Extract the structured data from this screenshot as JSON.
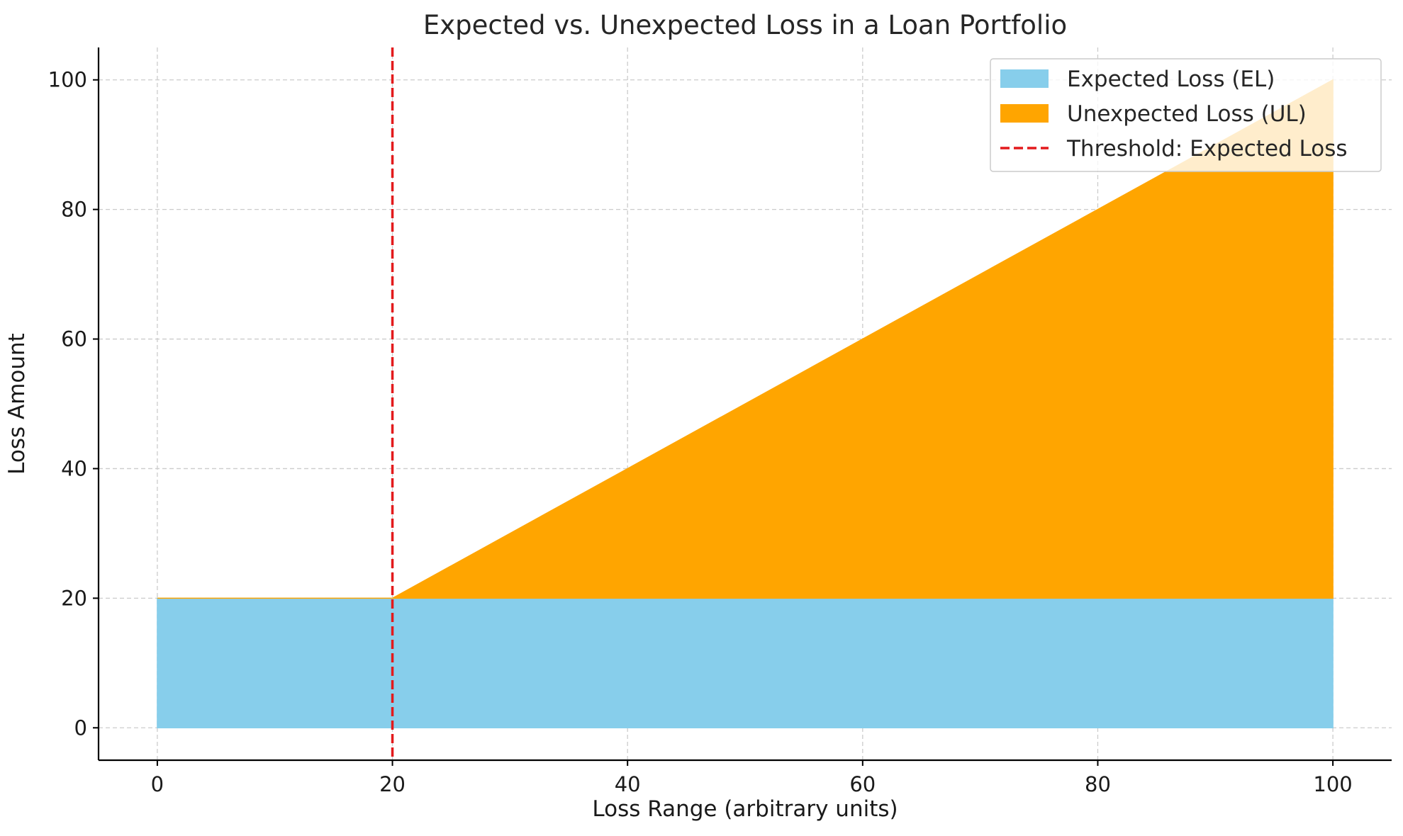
{
  "chart_data": {
    "type": "area",
    "title": "Expected vs. Unexpected Loss in a Loan Portfolio",
    "xlabel": "Loss Range (arbitrary units)",
    "ylabel": "Loss Amount",
    "xlim": [
      -5,
      105
    ],
    "ylim": [
      -5,
      105
    ],
    "x_ticks": [
      0,
      20,
      40,
      60,
      80,
      100
    ],
    "y_ticks": [
      0,
      20,
      40,
      60,
      80,
      100
    ],
    "grid": true,
    "legend_position": "top-right",
    "series": [
      {
        "name": "Expected Loss (EL)",
        "kind": "fill",
        "color": "#87CEEB",
        "x": [
          0,
          100
        ],
        "lower": [
          0,
          0
        ],
        "upper": [
          20,
          20
        ]
      },
      {
        "name": "Unexpected Loss (UL)",
        "kind": "fill",
        "color": "#FFA500",
        "x": [
          0,
          20,
          100
        ],
        "lower": [
          20,
          20,
          20
        ],
        "upper": [
          20,
          20,
          100
        ]
      },
      {
        "name": "Threshold: Expected Loss",
        "kind": "vline",
        "color": "#e31a1c",
        "x": 20
      }
    ]
  }
}
